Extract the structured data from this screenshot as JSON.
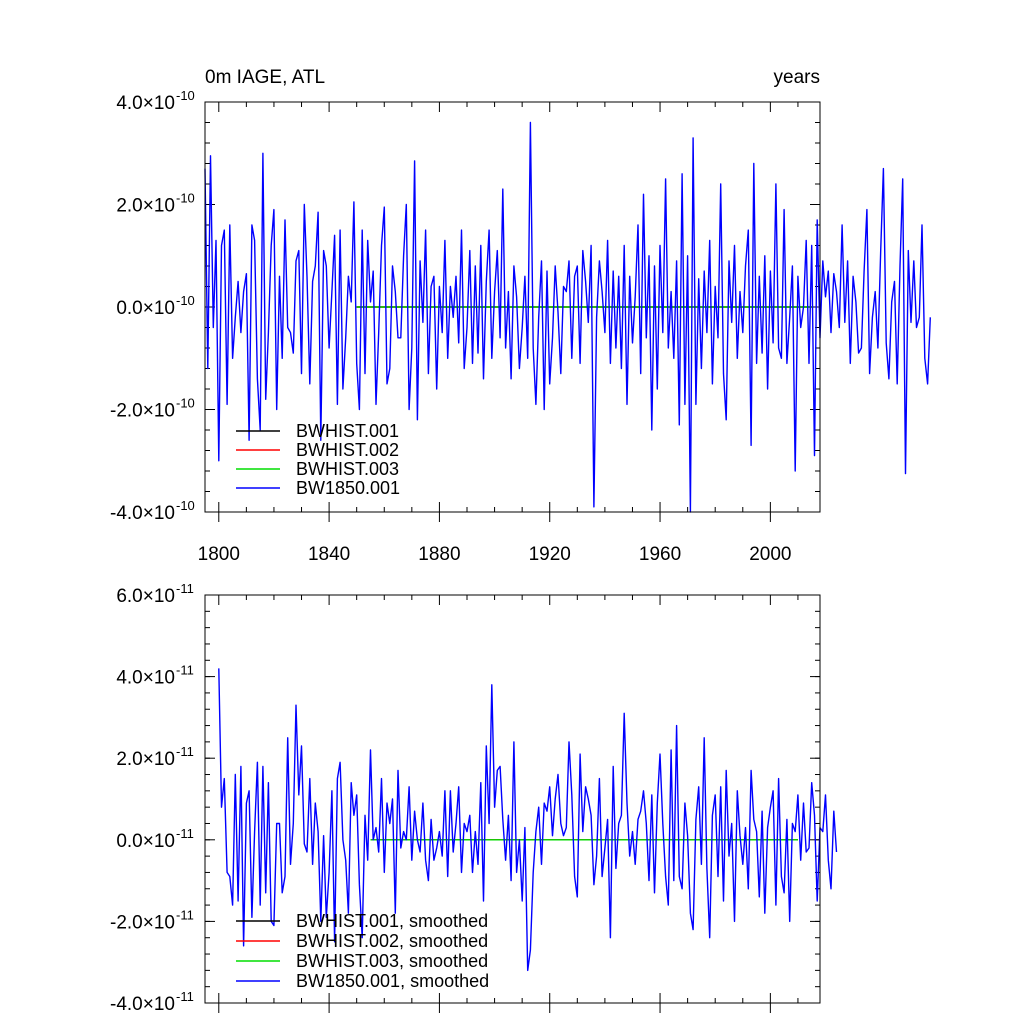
{
  "chart_data": [
    {
      "type": "line",
      "title_left": "0m IAGE, ATL",
      "title_right": "years",
      "xlim": [
        1795,
        2018
      ],
      "ylim": [
        -4e-10,
        4e-10
      ],
      "x_ticks": [
        1800,
        1840,
        1880,
        1920,
        1960,
        2000
      ],
      "x_tick_labels": [
        "1800",
        "1840",
        "1880",
        "1920",
        "1960",
        "2000"
      ],
      "y_ticks": [
        {
          "value": 4e-10,
          "mantissa": "4.0",
          "exponent": "-10"
        },
        {
          "value": 2e-10,
          "mantissa": "2.0",
          "exponent": "-10"
        },
        {
          "value": 0.0,
          "mantissa": "0.0",
          "exponent": "-10"
        },
        {
          "value": -2e-10,
          "mantissa": "-2.0",
          "exponent": "-10"
        },
        {
          "value": -4e-10,
          "mantissa": "-4.0",
          "exponent": "-10"
        }
      ],
      "times_symbol": "×",
      "base_label": "10",
      "legend": [
        {
          "label": "BWHIST.001",
          "color": "#000000"
        },
        {
          "label": "BWHIST.002",
          "color": "#ff0000"
        },
        {
          "label": "BWHIST.003",
          "color": "#00dd00"
        },
        {
          "label": "BW1850.001",
          "color": "#0000ff"
        }
      ],
      "series": [
        {
          "name": "BWHIST.001",
          "color": "#000000",
          "x": [
            1850,
            2015
          ],
          "y": [
            0.0,
            0.0
          ]
        },
        {
          "name": "BWHIST.002",
          "color": "#ff0000",
          "x": [
            1850,
            2015
          ],
          "y": [
            0.0,
            0.0
          ]
        },
        {
          "name": "BWHIST.003",
          "color": "#00dd00",
          "x": [
            1850,
            2015
          ],
          "y": [
            0.0,
            0.0
          ]
        },
        {
          "name": "BW1850.001",
          "color": "#0000ff",
          "x_start": 1795,
          "x_step": 1,
          "y": [
            2.7e-10,
            -1.2e-10,
            2.95e-10,
            -4e-11,
            1.3e-10,
            -3e-10,
            1.2e-10,
            1.5e-10,
            -1.9e-10,
            1.6e-10,
            -1e-10,
            -2e-11,
            5e-11,
            -5e-11,
            3e-11,
            6.5e-11,
            -2.6e-10,
            1.6e-10,
            1.3e-10,
            -1.4e-10,
            -2.4e-10,
            3e-10,
            -1.8e-10,
            -5e-11,
            1.2e-10,
            1.9e-10,
            -2e-10,
            6e-11,
            -1e-10,
            1.7e-10,
            -4e-11,
            -5e-11,
            -9e-11,
            9e-11,
            1.1e-10,
            -1.3e-10,
            2e-10,
            6e-11,
            -1.5e-10,
            5e-11,
            8e-11,
            1.85e-10,
            -2.6e-10,
            1.1e-10,
            8e-11,
            -8e-11,
            3e-11,
            1.4e-10,
            -1.9e-10,
            1.5e-10,
            -1.6e-10,
            -6e-11,
            6e-11,
            1e-11,
            2.05e-10,
            -1.1e-10,
            -2e-10,
            1.5e-10,
            -1.3e-10,
            1.3e-10,
            1e-11,
            7e-11,
            -1.9e-10,
            -5e-11,
            1.2e-10,
            1.95e-10,
            -1.5e-10,
            -1.2e-10,
            8e-11,
            3e-11,
            -6e-11,
            -6e-11,
            1e-10,
            2e-10,
            -2e-10,
            -8e-11,
            2.85e-10,
            -2.2e-10,
            9e-11,
            -3e-11,
            1.5e-10,
            -1.3e-10,
            4e-11,
            6e-11,
            -1.6e-10,
            4e-11,
            -5e-11,
            1.3e-10,
            -1e-10,
            4e-11,
            -2e-11,
            6e-11,
            -7e-11,
            1.5e-10,
            -1.2e-10,
            -4e-11,
            1.1e-10,
            -1.1e-10,
            8e-11,
            -9e-11,
            1.2e-10,
            -1.4e-10,
            5e-11,
            1.5e-10,
            -1e-10,
            3e-11,
            1.1e-10,
            -6e-11,
            2.3e-10,
            -8e-11,
            3e-11,
            -1.4e-10,
            8e-11,
            2e-11,
            -1.2e-10,
            -4e-11,
            6e-11,
            -1e-10,
            3.6e-10,
            -8e-11,
            -1.9e-10,
            -2e-11,
            9e-11,
            -2e-10,
            7e-11,
            -1.5e-10,
            -6e-11,
            8e-11,
            -1e-11,
            -1.3e-10,
            4e-11,
            3e-11,
            9e-11,
            -1e-10,
            6e-11,
            8e-11,
            -1.1e-10,
            1.1e-10,
            5e-11,
            -3e-11,
            1.2e-10,
            -3.9e-10,
            -2e-11,
            9e-11,
            3e-11,
            -5e-11,
            1.3e-10,
            -1.1e-10,
            7e-11,
            -8e-11,
            6e-11,
            -1.2e-10,
            1.2e-10,
            -1.9e-10,
            6e-11,
            -7e-11,
            2e-11,
            1.6e-10,
            -1.3e-10,
            2.2e-10,
            -6e-11,
            1e-10,
            -2.4e-10,
            8e-11,
            -1.6e-10,
            1.2e-10,
            -5e-11,
            2.5e-10,
            -8e-11,
            3e-11,
            -1e-10,
            9e-11,
            -2.3e-10,
            2.6e-10,
            -1.9e-10,
            1e-10,
            -4e-10,
            3.3e-10,
            -1.9e-10,
            5.5e-11,
            -1.2e-10,
            7e-11,
            -5e-11,
            1.3e-10,
            -1.5e-10,
            4e-11,
            -6e-11,
            2.4e-10,
            -1.3e-10,
            -2.2e-10,
            9e-11,
            -3e-11,
            1.2e-10,
            -1e-10,
            3e-11,
            -5e-11,
            8e-11,
            1.5e-10,
            -2.7e-10,
            2.8e-10,
            -1.1e-10,
            6e-11,
            -9e-11,
            1e-10,
            -1.6e-10,
            7e-11,
            -7e-11,
            2.4e-10,
            -8e-11,
            -1e-10,
            1.9e-10,
            -1.1e-10,
            -2e-11,
            8e-11,
            -3.2e-10,
            6e-11,
            -4e-11,
            0.0,
            1.3e-10,
            -1.1e-10,
            1.2e-10,
            -2.9e-10,
            1.7e-10,
            -6e-11,
            9e-11,
            2e-11,
            7e-11,
            -5e-11,
            6.5e-11,
            3e-11,
            -4e-11,
            1.6e-10,
            -3e-11,
            9e-11,
            -1.1e-10,
            6e-11,
            1e-11,
            -9e-11,
            -8e-11,
            7e-11,
            1.9e-10,
            -1.3e-10,
            -2e-11,
            3e-11,
            -8e-11,
            1.1e-10,
            2.7e-10,
            -7e-11,
            -1.4e-10,
            1e-11,
            5e-11,
            -1.5e-10,
            8e-11,
            2.5e-10,
            -3.25e-10,
            1.1e-10,
            -3e-11,
            9e-11,
            -4e-11,
            -2e-11,
            1.6e-10,
            -1e-10,
            -1.5e-10,
            -2e-11
          ]
        }
      ]
    },
    {
      "type": "line",
      "xlim": [
        1795,
        2018
      ],
      "ylim": [
        -4e-11,
        6e-11
      ],
      "x_ticks": [
        1800,
        1840,
        1880,
        1920,
        1960,
        2000
      ],
      "y_ticks": [
        {
          "value": 6e-11,
          "mantissa": "6.0",
          "exponent": "-11"
        },
        {
          "value": 4e-11,
          "mantissa": "4.0",
          "exponent": "-11"
        },
        {
          "value": 2e-11,
          "mantissa": "2.0",
          "exponent": "-11"
        },
        {
          "value": 0.0,
          "mantissa": "0.0",
          "exponent": "-11"
        },
        {
          "value": -2e-11,
          "mantissa": "-2.0",
          "exponent": "-11"
        },
        {
          "value": -4e-11,
          "mantissa": "-4.0",
          "exponent": "-11"
        }
      ],
      "times_symbol": "×",
      "base_label": "10",
      "legend": [
        {
          "label": "BWHIST.001, smoothed",
          "color": "#000000"
        },
        {
          "label": "BWHIST.002, smoothed",
          "color": "#ff0000"
        },
        {
          "label": "BWHIST.003, smoothed",
          "color": "#00dd00"
        },
        {
          "label": "BW1850.001, smoothed",
          "color": "#0000ff"
        }
      ],
      "series": [
        {
          "name": "BWHIST.001, smoothed",
          "color": "#000000",
          "x": [
            1855,
            2010
          ],
          "y": [
            0.0,
            0.0
          ]
        },
        {
          "name": "BWHIST.002, smoothed",
          "color": "#ff0000",
          "x": [
            1855,
            2010
          ],
          "y": [
            0.0,
            0.0
          ]
        },
        {
          "name": "BWHIST.003, smoothed",
          "color": "#00dd00",
          "x": [
            1855,
            2010
          ],
          "y": [
            0.0,
            0.0
          ]
        },
        {
          "name": "BW1850.001, smoothed",
          "color": "#0000ff",
          "x_start": 1800,
          "x_step": 1,
          "y": [
            4.2e-11,
            8e-12,
            1.5e-11,
            -8e-12,
            -9e-12,
            -1.6e-11,
            1.6e-11,
            -1.5e-11,
            1.8e-11,
            -2.6e-11,
            9e-12,
            1.2e-11,
            -1.9e-11,
            2e-12,
            1.9e-11,
            -1.6e-11,
            1.8e-11,
            -1.3e-11,
            1.4e-11,
            -2e-11,
            -2.1e-11,
            4e-12,
            4e-12,
            -1.3e-11,
            -9e-12,
            2.5e-11,
            -6e-12,
            4e-12,
            3.3e-11,
            1.1e-11,
            2.3e-11,
            -1e-12,
            -3e-12,
            1.5e-11,
            -6e-12,
            9e-12,
            2e-12,
            -2e-11,
            1e-12,
            -1.9e-11,
            -8e-12,
            1.2e-11,
            -2.5e-11,
            1.5e-11,
            1.9e-11,
            0.0,
            -5e-12,
            -1.8e-11,
            1.4e-11,
            6e-12,
            1.1e-11,
            -1.1e-11,
            -2.4e-11,
            6e-12,
            -5e-12,
            2.2e-11,
            0.0,
            3e-12,
            -3e-12,
            1.5e-11,
            -8e-12,
            9e-12,
            4e-12,
            1e-11,
            -1.8e-11,
            1.7e-11,
            -2e-12,
            2e-12,
            0.0,
            1.3e-11,
            -5e-12,
            7e-12,
            0.0,
            -3e-12,
            9e-12,
            -5e-12,
            -1e-11,
            5e-12,
            -5e-12,
            -2e-12,
            2e-12,
            -4e-12,
            1.2e-11,
            -9e-12,
            1.2e-11,
            -3e-12,
            4e-12,
            1.3e-11,
            -8e-12,
            4e-12,
            2e-12,
            6e-12,
            -8e-12,
            2e-12,
            -6e-12,
            1.4e-11,
            -1.5e-11,
            2.3e-11,
            4e-12,
            3.8e-11,
            8e-12,
            1.7e-11,
            1.8e-11,
            5e-12,
            -5e-12,
            6e-12,
            -1e-11,
            2.4e-11,
            -8e-12,
            0.0,
            -1.5e-11,
            3e-12,
            -3.2e-11,
            -2.7e-11,
            -8e-12,
            2e-12,
            8e-12,
            -6e-12,
            9e-12,
            7e-12,
            1.3e-11,
            1e-12,
            1e-11,
            1.6e-11,
            4e-12,
            1e-12,
            3e-12,
            2.4e-11,
            1.1e-11,
            -9e-12,
            -1.4e-11,
            2.1e-11,
            2e-12,
            1.3e-11,
            1e-11,
            6e-12,
            -1.1e-11,
            -4e-12,
            1.5e-11,
            -9e-12,
            -2e-12,
            5e-12,
            -2.4e-11,
            1.8e-11,
            -7e-12,
            4e-12,
            6e-12,
            3.1e-11,
            9e-12,
            -4e-12,
            2e-12,
            -6e-12,
            5e-12,
            7e-12,
            1.2e-11,
            4e-12,
            -1e-11,
            1.1e-11,
            -1.3e-11,
            9e-12,
            2.1e-11,
            4e-12,
            -9e-12,
            -1.6e-11,
            2.2e-11,
            -1e-11,
            2.8e-11,
            -9e-12,
            -1.2e-11,
            9e-12,
            1e-12,
            -1.8e-11,
            -2.2e-11,
            5e-12,
            1.3e-11,
            -6e-12,
            2.5e-11,
            -7e-12,
            -2.4e-11,
            6e-12,
            1.1e-11,
            -9e-12,
            1.3e-11,
            -1.5e-11,
            1.7e-11,
            -4e-12,
            4e-12,
            -2e-11,
            1.2e-11,
            1e-12,
            -6e-12,
            3e-12,
            -1.2e-11,
            1.7e-11,
            5e-12,
            2e-12,
            -1.4e-11,
            7e-12,
            -1.8e-11,
            3e-12,
            8e-12,
            1.2e-11,
            -1.6e-11,
            1.5e-11,
            -9e-12,
            -1.3e-11,
            5e-12,
            -2e-11,
            4e-12,
            2e-12,
            1.1e-11,
            -5e-12,
            9e-12,
            -3e-12,
            -2e-12,
            1.4e-11,
            6e-12,
            -1.5e-11,
            3e-12,
            2e-12,
            1.1e-11,
            -5e-12,
            -1.2e-11,
            7e-12,
            -3e-12
          ]
        }
      ]
    }
  ]
}
